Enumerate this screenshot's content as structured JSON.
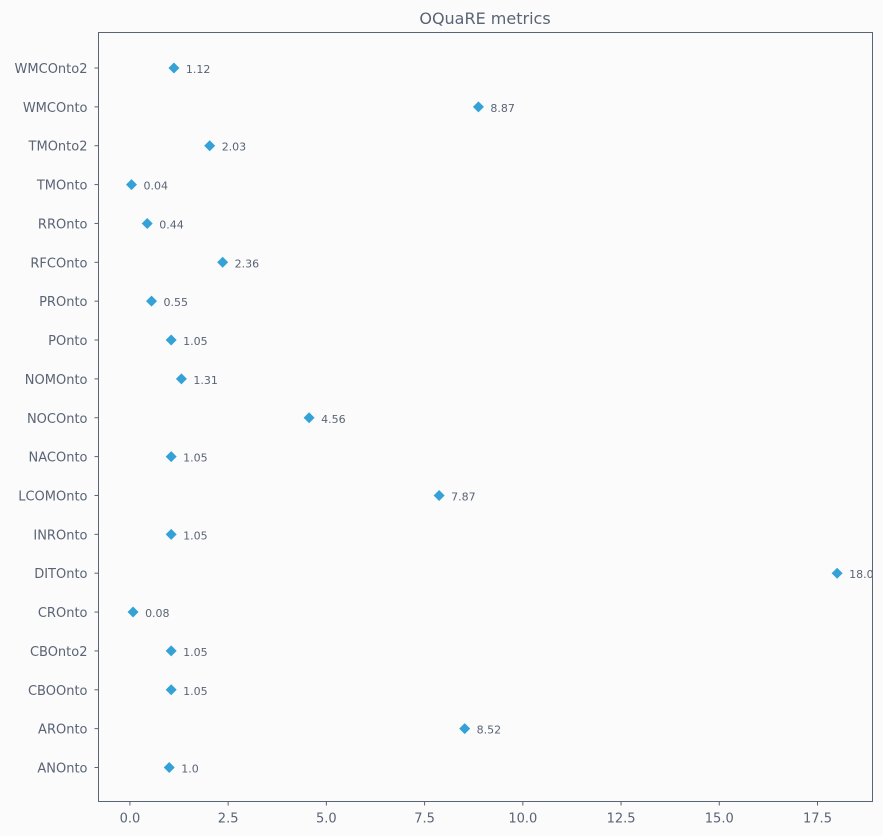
{
  "chart_data": {
    "type": "scatter",
    "title": "OQuaRE metrics",
    "xlabel": "",
    "ylabel": "",
    "xlim": [
      -0.8,
      18.9
    ],
    "xticks": [
      0.0,
      2.5,
      5.0,
      7.5,
      10.0,
      12.5,
      15.0,
      17.5
    ],
    "xtick_labels": [
      "0.0",
      "2.5",
      "5.0",
      "7.5",
      "10.0",
      "12.5",
      "15.0",
      "17.5"
    ],
    "grid": false,
    "marker": "diamond",
    "marker_color": "#35a2d7",
    "categories": [
      "ANOnto",
      "AROnto",
      "CBOOnto",
      "CBOnto2",
      "CROnto",
      "DITOnto",
      "INROnto",
      "LCOMOnto",
      "NACOnto",
      "NOCOnto",
      "NOMOnto",
      "POnto",
      "PROnto",
      "RFCOnto",
      "RROnto",
      "TMOnto",
      "TMOnto2",
      "WMCOnto",
      "WMCOnto2"
    ],
    "values": [
      1.0,
      8.52,
      1.05,
      1.05,
      0.08,
      18.0,
      1.05,
      7.87,
      1.05,
      4.56,
      1.31,
      1.05,
      0.55,
      2.36,
      0.44,
      0.04,
      2.03,
      8.87,
      1.12
    ],
    "value_labels": [
      "1.0",
      "8.52",
      "1.05",
      "1.05",
      "0.08",
      "18.0",
      "1.05",
      "7.87",
      "1.05",
      "4.56",
      "1.31",
      "1.05",
      "0.55",
      "2.36",
      "0.44",
      "0.04",
      "2.03",
      "8.87",
      "1.12"
    ]
  }
}
